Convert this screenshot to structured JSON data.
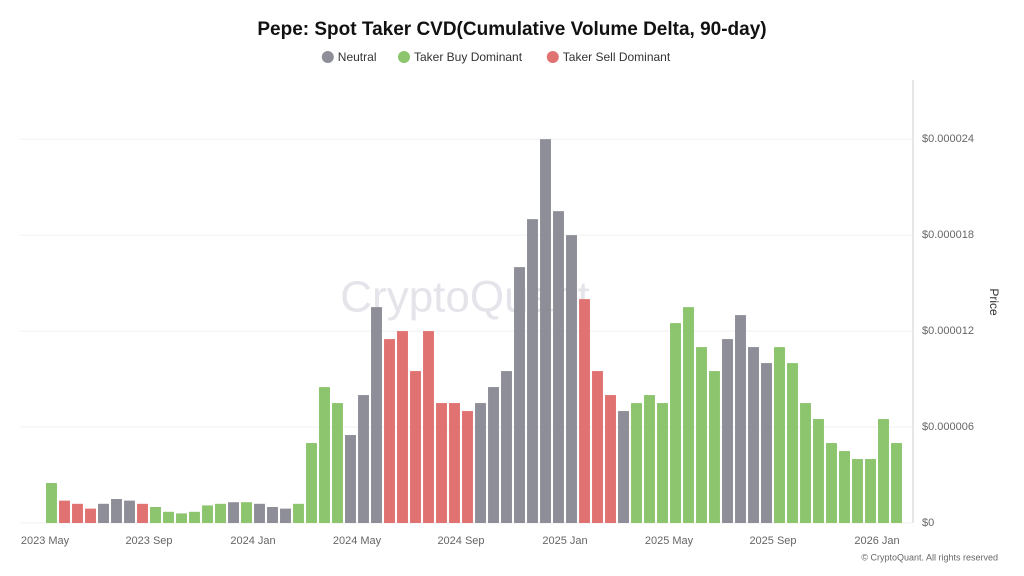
{
  "chart_data": {
    "type": "bar",
    "title": "Pepe: Spot Taker CVD(Cumulative Volume Delta, 90-day)",
    "y_label": "Price",
    "watermark": "CryptoQuant",
    "copyright": "© CryptoQuant. All rights reserved",
    "categories": [
      "2023 May",
      null,
      null,
      null,
      null,
      null,
      null,
      null,
      "2023 Sep",
      null,
      null,
      null,
      null,
      null,
      null,
      null,
      "2024 Jan",
      null,
      null,
      null,
      null,
      null,
      null,
      null,
      "2024 May",
      null,
      null,
      null,
      null,
      null,
      null,
      null,
      "2024 Sep",
      null,
      null,
      null,
      null,
      null,
      null,
      null,
      "2025 Jan",
      null,
      null,
      null,
      null,
      null,
      null,
      null,
      "2025 May",
      null,
      null,
      null,
      null,
      null,
      null,
      null,
      "2025 Sep",
      null,
      null,
      null,
      null,
      null,
      null,
      null,
      "2026 Jan",
      null
    ],
    "series": [
      {
        "name": "Neutral",
        "color": "#8e8e98",
        "values": [
          null,
          null,
          null,
          null,
          1.2e-06,
          1.5e-06,
          1.4e-06,
          null,
          null,
          null,
          null,
          null,
          null,
          null,
          1.3e-06,
          null,
          1.2e-06,
          1e-06,
          9e-07,
          null,
          null,
          null,
          null,
          5.5e-06,
          8e-06,
          1.35e-05,
          null,
          null,
          null,
          null,
          null,
          null,
          null,
          7.5e-06,
          8.5e-06,
          9.5e-06,
          1.6e-05,
          1.9e-05,
          2.4e-05,
          1.95e-05,
          1.8e-05,
          null,
          null,
          null,
          7e-06,
          null,
          null,
          null,
          null,
          null,
          null,
          null,
          1.15e-05,
          1.3e-05,
          1.1e-05,
          1e-05,
          null,
          null,
          null,
          null,
          null,
          null,
          null,
          null,
          null,
          null
        ]
      },
      {
        "name": "Taker Buy Dominant",
        "color": "#8cc56e",
        "values": [
          2.5e-06,
          null,
          null,
          null,
          null,
          null,
          null,
          null,
          1e-06,
          7e-07,
          6e-07,
          7e-07,
          1.1e-06,
          1.2e-06,
          null,
          1.3e-06,
          null,
          null,
          null,
          1.2e-06,
          5e-06,
          8.5e-06,
          7.5e-06,
          null,
          null,
          null,
          null,
          null,
          null,
          null,
          null,
          null,
          null,
          null,
          null,
          null,
          null,
          null,
          null,
          null,
          null,
          null,
          null,
          null,
          null,
          7.5e-06,
          8e-06,
          7.5e-06,
          1.25e-05,
          1.35e-05,
          1.1e-05,
          9.5e-06,
          null,
          null,
          null,
          null,
          1.1e-05,
          1e-05,
          7.5e-06,
          6.5e-06,
          5e-06,
          4.5e-06,
          4e-06,
          4e-06,
          6.5e-06,
          5e-06
        ]
      },
      {
        "name": "Taker Sell Dominant",
        "color": "#e07272",
        "values": [
          null,
          1.4e-06,
          1.2e-06,
          9e-07,
          null,
          null,
          null,
          1.2e-06,
          null,
          null,
          null,
          null,
          null,
          null,
          null,
          null,
          null,
          null,
          null,
          null,
          null,
          null,
          null,
          null,
          null,
          null,
          1.15e-05,
          1.2e-05,
          9.5e-06,
          1.2e-05,
          7.5e-06,
          7.5e-06,
          7e-06,
          null,
          null,
          null,
          null,
          null,
          null,
          null,
          null,
          1.4e-05,
          9.5e-06,
          8e-06,
          null,
          null,
          null,
          null,
          null,
          null,
          null,
          null,
          null,
          null,
          null,
          null,
          null,
          null,
          null,
          null,
          null,
          null,
          null,
          null,
          null,
          null
        ]
      }
    ],
    "ylim": [
      0,
      2.77e-05
    ],
    "yticks": [
      {
        "value": 0,
        "label": "$0"
      },
      {
        "value": 6e-06,
        "label": "$0.000006"
      },
      {
        "value": 1.2e-05,
        "label": "$0.000012"
      },
      {
        "value": 1.8e-05,
        "label": "$0.000018"
      },
      {
        "value": 2.4e-05,
        "label": "$0.000024"
      }
    ],
    "grid": true
  }
}
